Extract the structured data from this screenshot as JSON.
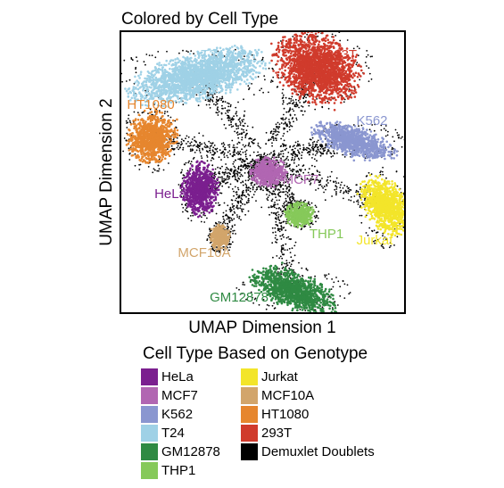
{
  "chart_data": {
    "type": "scatter",
    "title": "Colored by Cell Type",
    "xlabel": "UMAP Dimension 1",
    "ylabel": "UMAP Dimension 2",
    "axis_ticks": false,
    "grid": false,
    "legend": {
      "title": "Cell Type Based on Genotype",
      "placement": "bottom",
      "columns": [
        [
          {
            "name": "HeLa",
            "color": "#7b1f8f"
          },
          {
            "name": "MCF7",
            "color": "#b166b2"
          },
          {
            "name": "K562",
            "color": "#8a96d0"
          },
          {
            "name": "T24",
            "color": "#9fd1e6"
          },
          {
            "name": "GM12878",
            "color": "#2f8a43"
          },
          {
            "name": "THP1",
            "color": "#86c95a"
          }
        ],
        [
          {
            "name": "Jurkat",
            "color": "#f3e52a"
          },
          {
            "name": "MCF10A",
            "color": "#d2a56b"
          },
          {
            "name": "HT1080",
            "color": "#e6862e"
          },
          {
            "name": "293T",
            "color": "#d03b2c"
          },
          {
            "name": "Demuxlet Doublets",
            "color": "#000000"
          }
        ]
      ]
    },
    "clusters": [
      {
        "name": "T24",
        "label": "T24",
        "color": "#9fd1e6",
        "center": [
          0.27,
          0.84
        ],
        "size": [
          0.23,
          0.08
        ],
        "angle": 14
      },
      {
        "name": "293T",
        "label": "293T",
        "color": "#d03b2c",
        "center": [
          0.69,
          0.87
        ],
        "size": [
          0.15,
          0.11
        ],
        "angle": -28
      },
      {
        "name": "HT1080",
        "label": "HT1080",
        "color": "#e6862e",
        "center": [
          0.11,
          0.62
        ],
        "size": [
          0.08,
          0.09
        ],
        "angle": -20
      },
      {
        "name": "K562",
        "label": "K562",
        "color": "#8a96d0",
        "center": [
          0.82,
          0.61
        ],
        "size": [
          0.14,
          0.05
        ],
        "angle": -18
      },
      {
        "name": "HeLa",
        "label": "HeLa",
        "color": "#7b1f8f",
        "center": [
          0.28,
          0.44
        ],
        "size": [
          0.06,
          0.09
        ],
        "angle": 0
      },
      {
        "name": "MCF7",
        "label": "MCF7",
        "color": "#b166b2",
        "center": [
          0.52,
          0.5
        ],
        "size": [
          0.06,
          0.05
        ],
        "angle": 0
      },
      {
        "name": "Jurkat",
        "label": "Jurkat",
        "color": "#f3e52a",
        "center": [
          0.93,
          0.38
        ],
        "size": [
          0.07,
          0.11
        ],
        "angle": 35
      },
      {
        "name": "THP1",
        "label": "THP1",
        "color": "#86c95a",
        "center": [
          0.63,
          0.35
        ],
        "size": [
          0.05,
          0.04
        ],
        "angle": 0
      },
      {
        "name": "MCF10A",
        "label": "MCF10A",
        "color": "#d2a56b",
        "center": [
          0.35,
          0.27
        ],
        "size": [
          0.035,
          0.04
        ],
        "angle": 0
      },
      {
        "name": "GM12878",
        "label": "GM12878",
        "color": "#2f8a43",
        "center": [
          0.61,
          0.08
        ],
        "size": [
          0.15,
          0.06
        ],
        "angle": -22
      }
    ],
    "doublets": {
      "name": "Demuxlet Doublets",
      "color": "#000000"
    }
  }
}
